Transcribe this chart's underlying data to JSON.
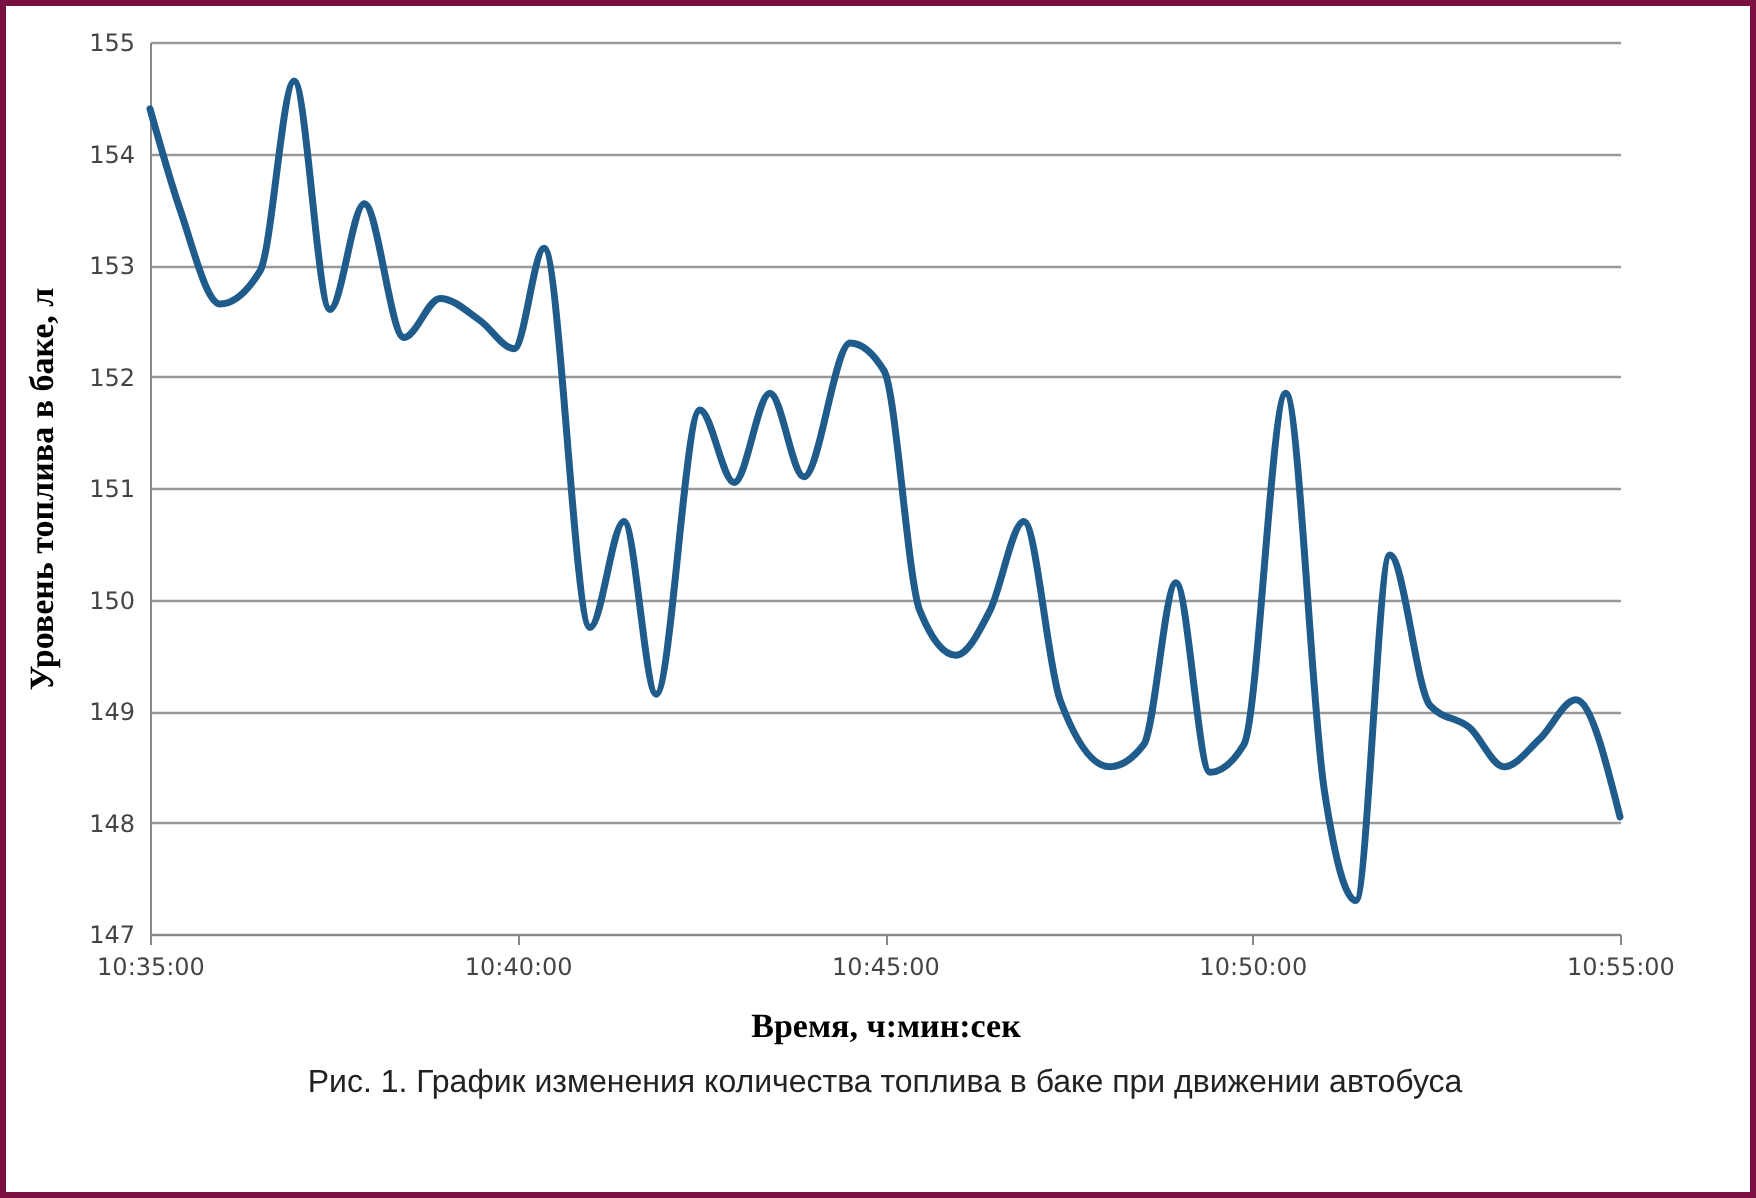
{
  "chart_data": {
    "type": "line",
    "xlabel": "Время, ч:мин:сек",
    "ylabel": "Уровень топлива в баке, л",
    "annotations": [
      "Рис. 1. График изменения количества топлива в баке при движении автобуса"
    ],
    "x": [
      10.5833,
      10.5901,
      10.5992,
      10.6083,
      10.616,
      10.6241,
      10.6319,
      10.6409,
      10.6491,
      10.6582,
      10.6659,
      10.6727,
      10.6831,
      10.6908,
      10.6981,
      10.708,
      10.7158,
      10.7239,
      10.7316,
      10.7421,
      10.7498,
      10.7579,
      10.7661,
      10.7738,
      10.7815,
      10.7897,
      10.801,
      10.8087,
      10.816,
      10.8237,
      10.8314,
      10.8409,
      10.8496,
      10.8568,
      10.8645,
      10.8736,
      10.8826,
      10.8904,
      10.8985,
      10.9067,
      10.9167
    ],
    "series": [
      {
        "color": "#1f5c8c",
        "values": [
          154.4,
          153.5,
          152.65,
          152.95,
          154.65,
          152.6,
          153.55,
          152.35,
          152.7,
          152.5,
          152.25,
          153.15,
          149.75,
          150.7,
          149.15,
          151.7,
          151.05,
          151.85,
          151.1,
          152.3,
          152.05,
          149.9,
          149.5,
          149.9,
          150.7,
          149.1,
          148.5,
          148.7,
          150.15,
          148.45,
          148.7,
          151.85,
          148.3,
          147.3,
          150.4,
          149.05,
          148.85,
          148.5,
          148.75,
          149.1,
          148.05
        ]
      }
    ],
    "xlim": [
      10.5833,
      10.9167
    ],
    "xticks": [
      {
        "value": 10.5833,
        "label": "10:35:00"
      },
      {
        "value": 10.6667,
        "label": "10:40:00"
      },
      {
        "value": 10.75,
        "label": "10:45:00"
      },
      {
        "value": 10.8333,
        "label": "10:50:00"
      },
      {
        "value": 10.9167,
        "label": "10:55:00"
      }
    ],
    "ylim": [
      147,
      155
    ],
    "yticks": [
      147,
      148,
      149,
      150,
      151,
      152,
      153,
      154,
      155
    ],
    "grid": "y",
    "marker": "none",
    "line_style": "solid"
  }
}
